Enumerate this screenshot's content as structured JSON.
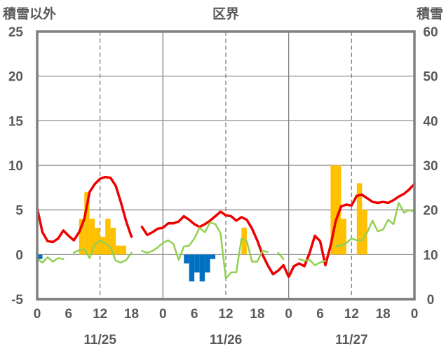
{
  "chart_data": {
    "type": "bar+line",
    "left_axis_title": "積雪以外",
    "center_title": "区界",
    "right_axis_title": "積雪",
    "left_axis": {
      "ylim": [
        -5,
        25
      ],
      "ticks": [
        -5,
        0,
        5,
        10,
        15,
        20,
        25
      ],
      "tick_labels": [
        "-5",
        "0",
        "5",
        "10",
        "15",
        "20",
        "25"
      ]
    },
    "right_axis": {
      "ylim": [
        0,
        60
      ],
      "ticks": [
        0,
        10,
        20,
        30,
        40,
        50,
        60
      ],
      "tick_labels": [
        "0",
        "10",
        "20",
        "30",
        "40",
        "50",
        "60"
      ]
    },
    "x_axis": {
      "range_hours": [
        0,
        72
      ],
      "hour_ticks": [
        0,
        6,
        12,
        18,
        24,
        30,
        36,
        42,
        48,
        54,
        60,
        66,
        72
      ],
      "hour_tick_labels": [
        "0",
        "6",
        "12",
        "18",
        "0",
        "6",
        "12",
        "18",
        "0",
        "6",
        "12",
        "18",
        "0"
      ],
      "dates": [
        "11/25",
        "11/26",
        "11/27"
      ],
      "date_centers_hours": [
        12,
        36,
        60
      ],
      "day_separators_hours": [
        24,
        48
      ],
      "dashed_gridlines_hours": [
        12,
        36,
        60
      ]
    },
    "grid": {
      "horizontal": true,
      "vertical_dashed": true
    },
    "colors": {
      "temperature": "#ee0000",
      "dewpoint": "#92d050",
      "precip_bar": "#ffc000",
      "snow_change_bar": "#0070c0",
      "snow_depth": "#7030a0",
      "frame": "#808080"
    },
    "series": [
      {
        "key": "temperature",
        "axis": "left",
        "segments": [
          [
            [
              0,
              5.2
            ],
            [
              1,
              2.5
            ],
            [
              2,
              1.5
            ],
            [
              3,
              1.4
            ],
            [
              4,
              1.8
            ],
            [
              5,
              2.7
            ],
            [
              6,
              2.1
            ],
            [
              7,
              1.6
            ],
            [
              8,
              2.5
            ],
            [
              9,
              4.0
            ],
            [
              10,
              7.0
            ],
            [
              11,
              7.9
            ],
            [
              12,
              8.5
            ],
            [
              13,
              8.7
            ],
            [
              14,
              8.6
            ],
            [
              15,
              7.7
            ],
            [
              16,
              5.8
            ],
            [
              17,
              3.7
            ],
            [
              18,
              2.0
            ]
          ],
          [
            [
              20,
              3.1
            ],
            [
              21,
              2.2
            ],
            [
              22,
              2.5
            ],
            [
              23,
              2.9
            ],
            [
              24,
              3.0
            ],
            [
              25,
              3.5
            ],
            [
              26,
              3.5
            ],
            [
              27,
              3.7
            ],
            [
              28,
              4.3
            ],
            [
              29,
              3.9
            ],
            [
              30,
              3.4
            ],
            [
              31,
              3.1
            ],
            [
              32,
              3.4
            ],
            [
              33,
              3.8
            ],
            [
              34,
              4.3
            ],
            [
              35,
              4.8
            ],
            [
              36,
              4.4
            ],
            [
              37,
              4.3
            ],
            [
              38,
              3.8
            ],
            [
              39,
              4.2
            ],
            [
              40,
              3.9
            ],
            [
              41,
              2.9
            ],
            [
              42,
              1.6
            ],
            [
              43,
              0.0
            ],
            [
              44,
              -1.2
            ],
            [
              45,
              -2.2
            ],
            [
              46,
              -1.8
            ],
            [
              47,
              -1.2
            ],
            [
              48,
              -2.5
            ],
            [
              49,
              -1.3
            ],
            [
              50,
              -1.0
            ],
            [
              51,
              -1.3
            ],
            [
              52,
              0.2
            ],
            [
              53,
              2.1
            ],
            [
              54,
              1.5
            ],
            [
              55,
              -1.2
            ],
            [
              56,
              1.0
            ],
            [
              57,
              3.8
            ],
            [
              58,
              5.4
            ],
            [
              59,
              5.6
            ],
            [
              60,
              5.5
            ],
            [
              61,
              6.6
            ],
            [
              62,
              6.7
            ],
            [
              63,
              6.3
            ],
            [
              64,
              5.9
            ],
            [
              65,
              5.8
            ],
            [
              66,
              5.9
            ],
            [
              67,
              5.8
            ],
            [
              68,
              6.1
            ],
            [
              69,
              6.5
            ],
            [
              70,
              6.8
            ],
            [
              71,
              7.3
            ],
            [
              72,
              7.9
            ]
          ]
        ]
      },
      {
        "key": "dewpoint",
        "axis": "left",
        "segments": [
          [
            [
              0,
              -0.5
            ],
            [
              1,
              -0.9
            ],
            [
              2,
              -0.3
            ],
            [
              3,
              -0.8
            ],
            [
              4,
              -0.4
            ],
            [
              5,
              -0.5
            ]
          ],
          [
            [
              7,
              0.2
            ],
            [
              8,
              0.5
            ],
            [
              9,
              0.6
            ],
            [
              10,
              -0.4
            ],
            [
              11,
              1.1
            ],
            [
              12,
              1.6
            ],
            [
              13,
              1.3
            ],
            [
              14,
              0.8
            ],
            [
              15,
              -0.7
            ],
            [
              16,
              -0.9
            ],
            [
              17,
              -0.6
            ],
            [
              18,
              0.2
            ]
          ],
          [
            [
              20,
              0.4
            ],
            [
              21,
              0.2
            ],
            [
              22,
              0.4
            ],
            [
              23,
              0.8
            ],
            [
              24,
              1.3
            ],
            [
              25,
              1.6
            ],
            [
              26,
              1.2
            ],
            [
              27,
              -0.6
            ],
            [
              28,
              0.9
            ],
            [
              29,
              1.0
            ],
            [
              30,
              1.8
            ],
            [
              31,
              3.0
            ],
            [
              32,
              2.5
            ],
            [
              33,
              3.6
            ],
            [
              34,
              3.4
            ],
            [
              35,
              2.4
            ],
            [
              36,
              -2.7
            ],
            [
              37,
              -2.0
            ],
            [
              38,
              -2.0
            ],
            [
              39,
              1.8
            ],
            [
              40,
              1.5
            ],
            [
              41,
              -0.8
            ],
            [
              42,
              -0.8
            ],
            [
              43,
              0.4
            ],
            [
              44,
              0.3
            ]
          ],
          [
            [
              46,
              0.2
            ],
            [
              47,
              -0.5
            ]
          ],
          [
            [
              50,
              -0.5
            ],
            [
              51,
              -0.7
            ],
            [
              52,
              -0.6
            ],
            [
              53,
              -1.2
            ],
            [
              54,
              -0.9
            ],
            [
              55,
              -0.7
            ]
          ],
          [
            [
              57,
              0.9
            ],
            [
              58,
              1.0
            ],
            [
              59,
              1.3
            ],
            [
              60,
              1.8
            ],
            [
              61,
              1.6
            ],
            [
              62,
              1.6
            ],
            [
              63,
              2.5
            ],
            [
              64,
              3.8
            ],
            [
              65,
              2.6
            ],
            [
              66,
              2.8
            ],
            [
              67,
              3.9
            ],
            [
              68,
              3.4
            ],
            [
              69,
              5.8
            ],
            [
              70,
              4.7
            ],
            [
              71,
              5.0
            ],
            [
              72,
              4.8
            ]
          ]
        ]
      },
      {
        "key": "snow_depth",
        "axis": "right",
        "segments": [
          [
            [
              0,
              0
            ],
            [
              72,
              0
            ]
          ]
        ]
      }
    ],
    "bars_precip": [
      {
        "hour": 8,
        "value": 4
      },
      {
        "hour": 9,
        "value": 7
      },
      {
        "hour": 10,
        "value": 4
      },
      {
        "hour": 11,
        "value": 3
      },
      {
        "hour": 12,
        "value": 2
      },
      {
        "hour": 13,
        "value": 4
      },
      {
        "hour": 14,
        "value": 3
      },
      {
        "hour": 15,
        "value": 1
      },
      {
        "hour": 16,
        "value": 1
      },
      {
        "hour": 39,
        "value": 3
      },
      {
        "hour": 56,
        "value": 10
      },
      {
        "hour": 57,
        "value": 10
      },
      {
        "hour": 58,
        "value": 4
      },
      {
        "hour": 61,
        "value": 8
      },
      {
        "hour": 62,
        "value": 5
      }
    ],
    "bars_snow_change": [
      {
        "hour": 0,
        "value": -0.5
      },
      {
        "hour": 28,
        "value": -1
      },
      {
        "hour": 29,
        "value": -3
      },
      {
        "hour": 30,
        "value": -2
      },
      {
        "hour": 31,
        "value": -3
      },
      {
        "hour": 32,
        "value": -2
      },
      {
        "hour": 33,
        "value": -0.5
      }
    ]
  }
}
